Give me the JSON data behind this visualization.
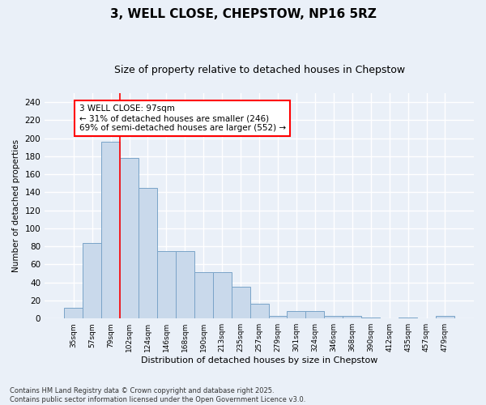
{
  "title_line1": "3, WELL CLOSE, CHEPSTOW, NP16 5RZ",
  "title_line2": "Size of property relative to detached houses in Chepstow",
  "xlabel": "Distribution of detached houses by size in Chepstow",
  "ylabel": "Number of detached properties",
  "footer": "Contains HM Land Registry data © Crown copyright and database right 2025.\nContains public sector information licensed under the Open Government Licence v3.0.",
  "categories": [
    "35sqm",
    "57sqm",
    "79sqm",
    "102sqm",
    "124sqm",
    "146sqm",
    "168sqm",
    "190sqm",
    "213sqm",
    "235sqm",
    "257sqm",
    "279sqm",
    "301sqm",
    "324sqm",
    "346sqm",
    "368sqm",
    "390sqm",
    "412sqm",
    "435sqm",
    "457sqm",
    "479sqm"
  ],
  "values": [
    12,
    84,
    196,
    178,
    145,
    75,
    75,
    51,
    51,
    35,
    16,
    3,
    8,
    8,
    3,
    3,
    1,
    0,
    1,
    0,
    3
  ],
  "bar_color": "#c9d9eb",
  "bar_edge_color": "#7aa4c8",
  "annotation_text": "3 WELL CLOSE: 97sqm\n← 31% of detached houses are smaller (246)\n69% of semi-detached houses are larger (552) →",
  "annotation_box_color": "white",
  "annotation_box_edge_color": "red",
  "vline_color": "red",
  "bg_color": "#eaf0f8",
  "plot_bg_color": "#eaf0f8",
  "ylim": [
    0,
    250
  ],
  "yticks": [
    0,
    20,
    40,
    60,
    80,
    100,
    120,
    140,
    160,
    180,
    200,
    220,
    240
  ],
  "grid_color": "white",
  "title_fontsize": 11,
  "subtitle_fontsize": 9
}
